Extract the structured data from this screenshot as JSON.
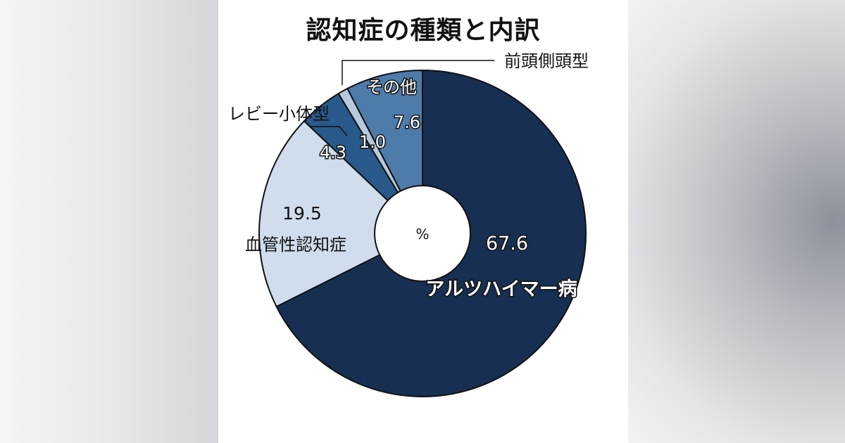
{
  "chart_data": {
    "type": "pie",
    "title": "認知症の種類と内訳",
    "unit": "%",
    "categories": [
      "アルツハイマー病",
      "血管性認知症",
      "レビー小体型",
      "前頭側頭型",
      "その他"
    ],
    "values": [
      67.6,
      19.5,
      4.3,
      1.0,
      7.6
    ],
    "value_labels": [
      "67.6",
      "19.5",
      "4.3",
      "1.0",
      "7.6"
    ],
    "colors": [
      "#162f52",
      "#cfdded",
      "#28598a",
      "#b6c9dd",
      "#4d7cab"
    ]
  }
}
